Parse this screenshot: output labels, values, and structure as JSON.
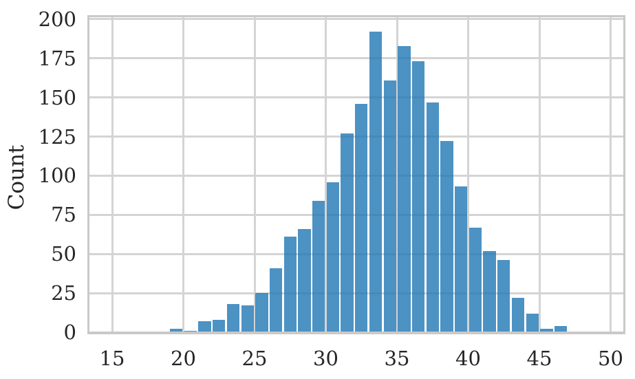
{
  "chart_data": {
    "type": "histogram",
    "title": "",
    "xlabel": "",
    "ylabel": "Count",
    "bin_width": 1,
    "bins_start": [
      19,
      20,
      21,
      22,
      23,
      24,
      25,
      26,
      27,
      28,
      29,
      30,
      31,
      32,
      33,
      34,
      35,
      36,
      37,
      38,
      39,
      40,
      41,
      42,
      43,
      44,
      45,
      46
    ],
    "counts": [
      2,
      1,
      7,
      8,
      18,
      17,
      25,
      41,
      61,
      66,
      84,
      96,
      127,
      146,
      192,
      161,
      183,
      173,
      147,
      122,
      93,
      67,
      52,
      46,
      22,
      12,
      2,
      4
    ],
    "x_ticks": [
      15,
      20,
      25,
      30,
      35,
      40,
      45,
      50
    ],
    "y_ticks": [
      0,
      25,
      50,
      75,
      100,
      125,
      150,
      175,
      200
    ],
    "xlim": [
      13.3,
      50.9
    ],
    "ylim": [
      0,
      202
    ],
    "grid": true,
    "legend_position": "none",
    "colors": {
      "bar_fill": "#1f77b4",
      "bar_opacity": 0.8,
      "grid": "#d4d4d4",
      "spine": "#c9c9c9",
      "text": "#262626",
      "background": "#ffffff"
    }
  }
}
